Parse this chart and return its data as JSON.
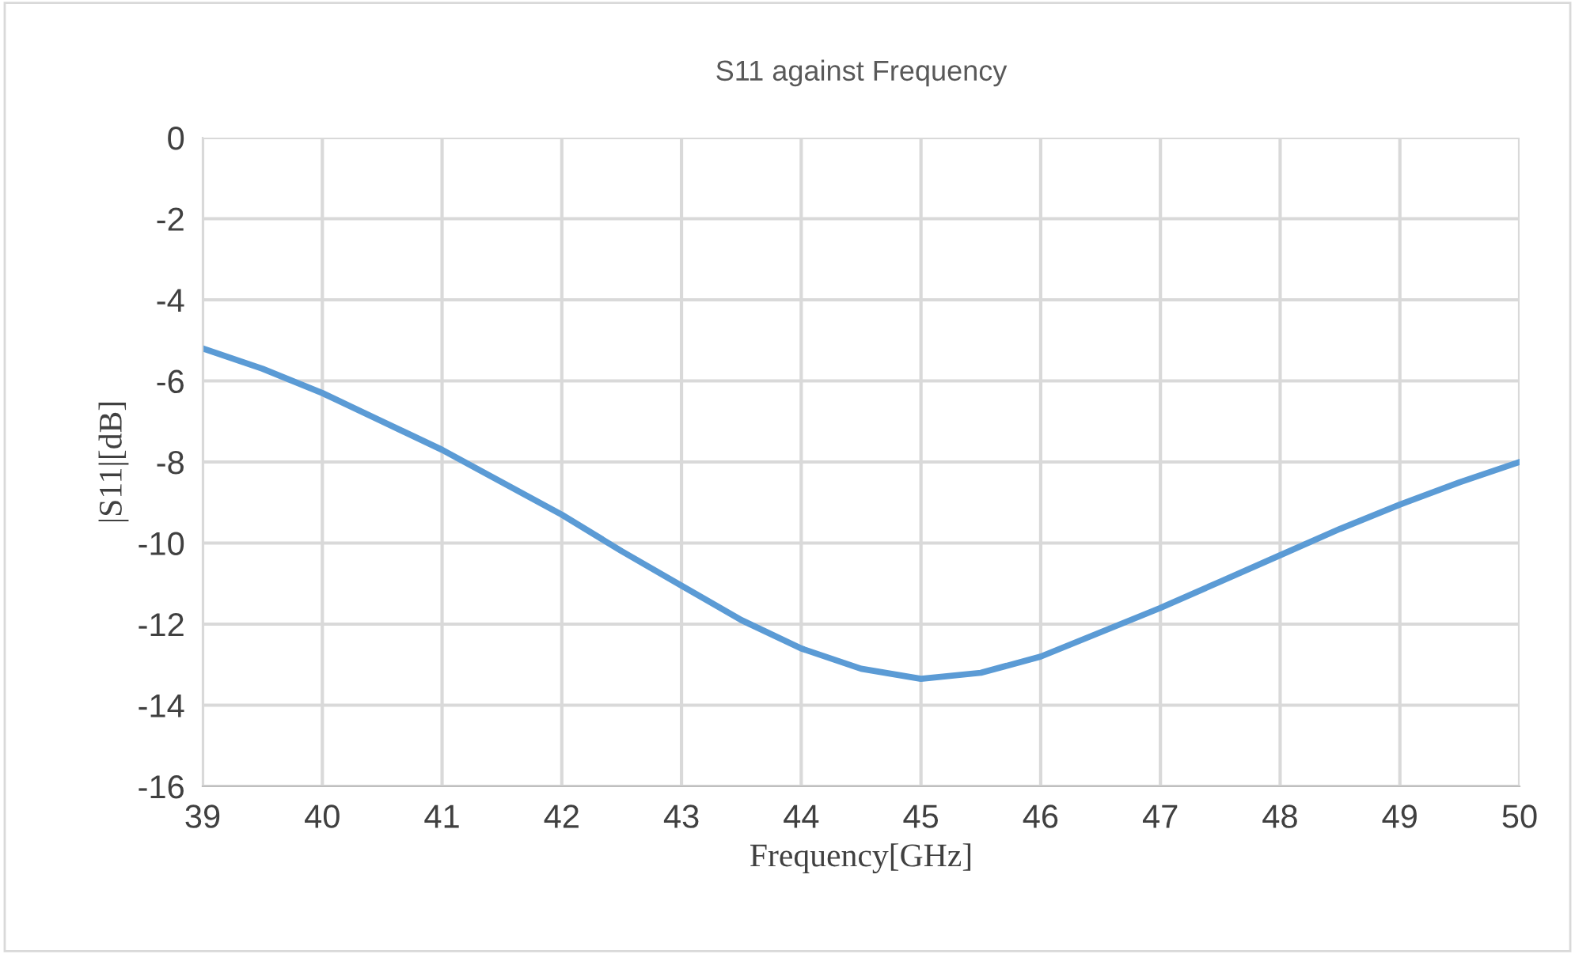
{
  "chart_data": {
    "type": "line",
    "title": "S11 against Frequency",
    "xlabel": "Frequency[GHz]",
    "ylabel": "|S11|[dB]",
    "x": [
      39,
      39.5,
      40,
      40.5,
      41,
      41.5,
      42,
      42.5,
      43,
      43.5,
      44,
      44.5,
      45,
      45.5,
      46,
      46.5,
      47,
      47.5,
      48,
      48.5,
      49,
      49.5,
      50
    ],
    "series": [
      {
        "color": "#5b9bd5",
        "values": [
          -5.2,
          -5.7,
          -6.3,
          -7.0,
          -7.7,
          -8.5,
          -9.3,
          -10.2,
          -11.05,
          -11.9,
          -12.6,
          -13.1,
          -13.35,
          -13.2,
          -12.8,
          -12.2,
          -11.6,
          -10.95,
          -10.3,
          -9.65,
          -9.05,
          -8.5,
          -8.0
        ]
      }
    ],
    "xlim": [
      39,
      50
    ],
    "xticks": [
      39,
      40,
      41,
      42,
      43,
      44,
      45,
      46,
      47,
      48,
      49,
      50
    ],
    "ylim": [
      -16,
      0
    ],
    "yticks": [
      -16,
      -14,
      -12,
      -10,
      -8,
      -6,
      -4,
      -2,
      0
    ],
    "grid": true,
    "legend": false,
    "marker": "none",
    "line_style": "solid"
  }
}
